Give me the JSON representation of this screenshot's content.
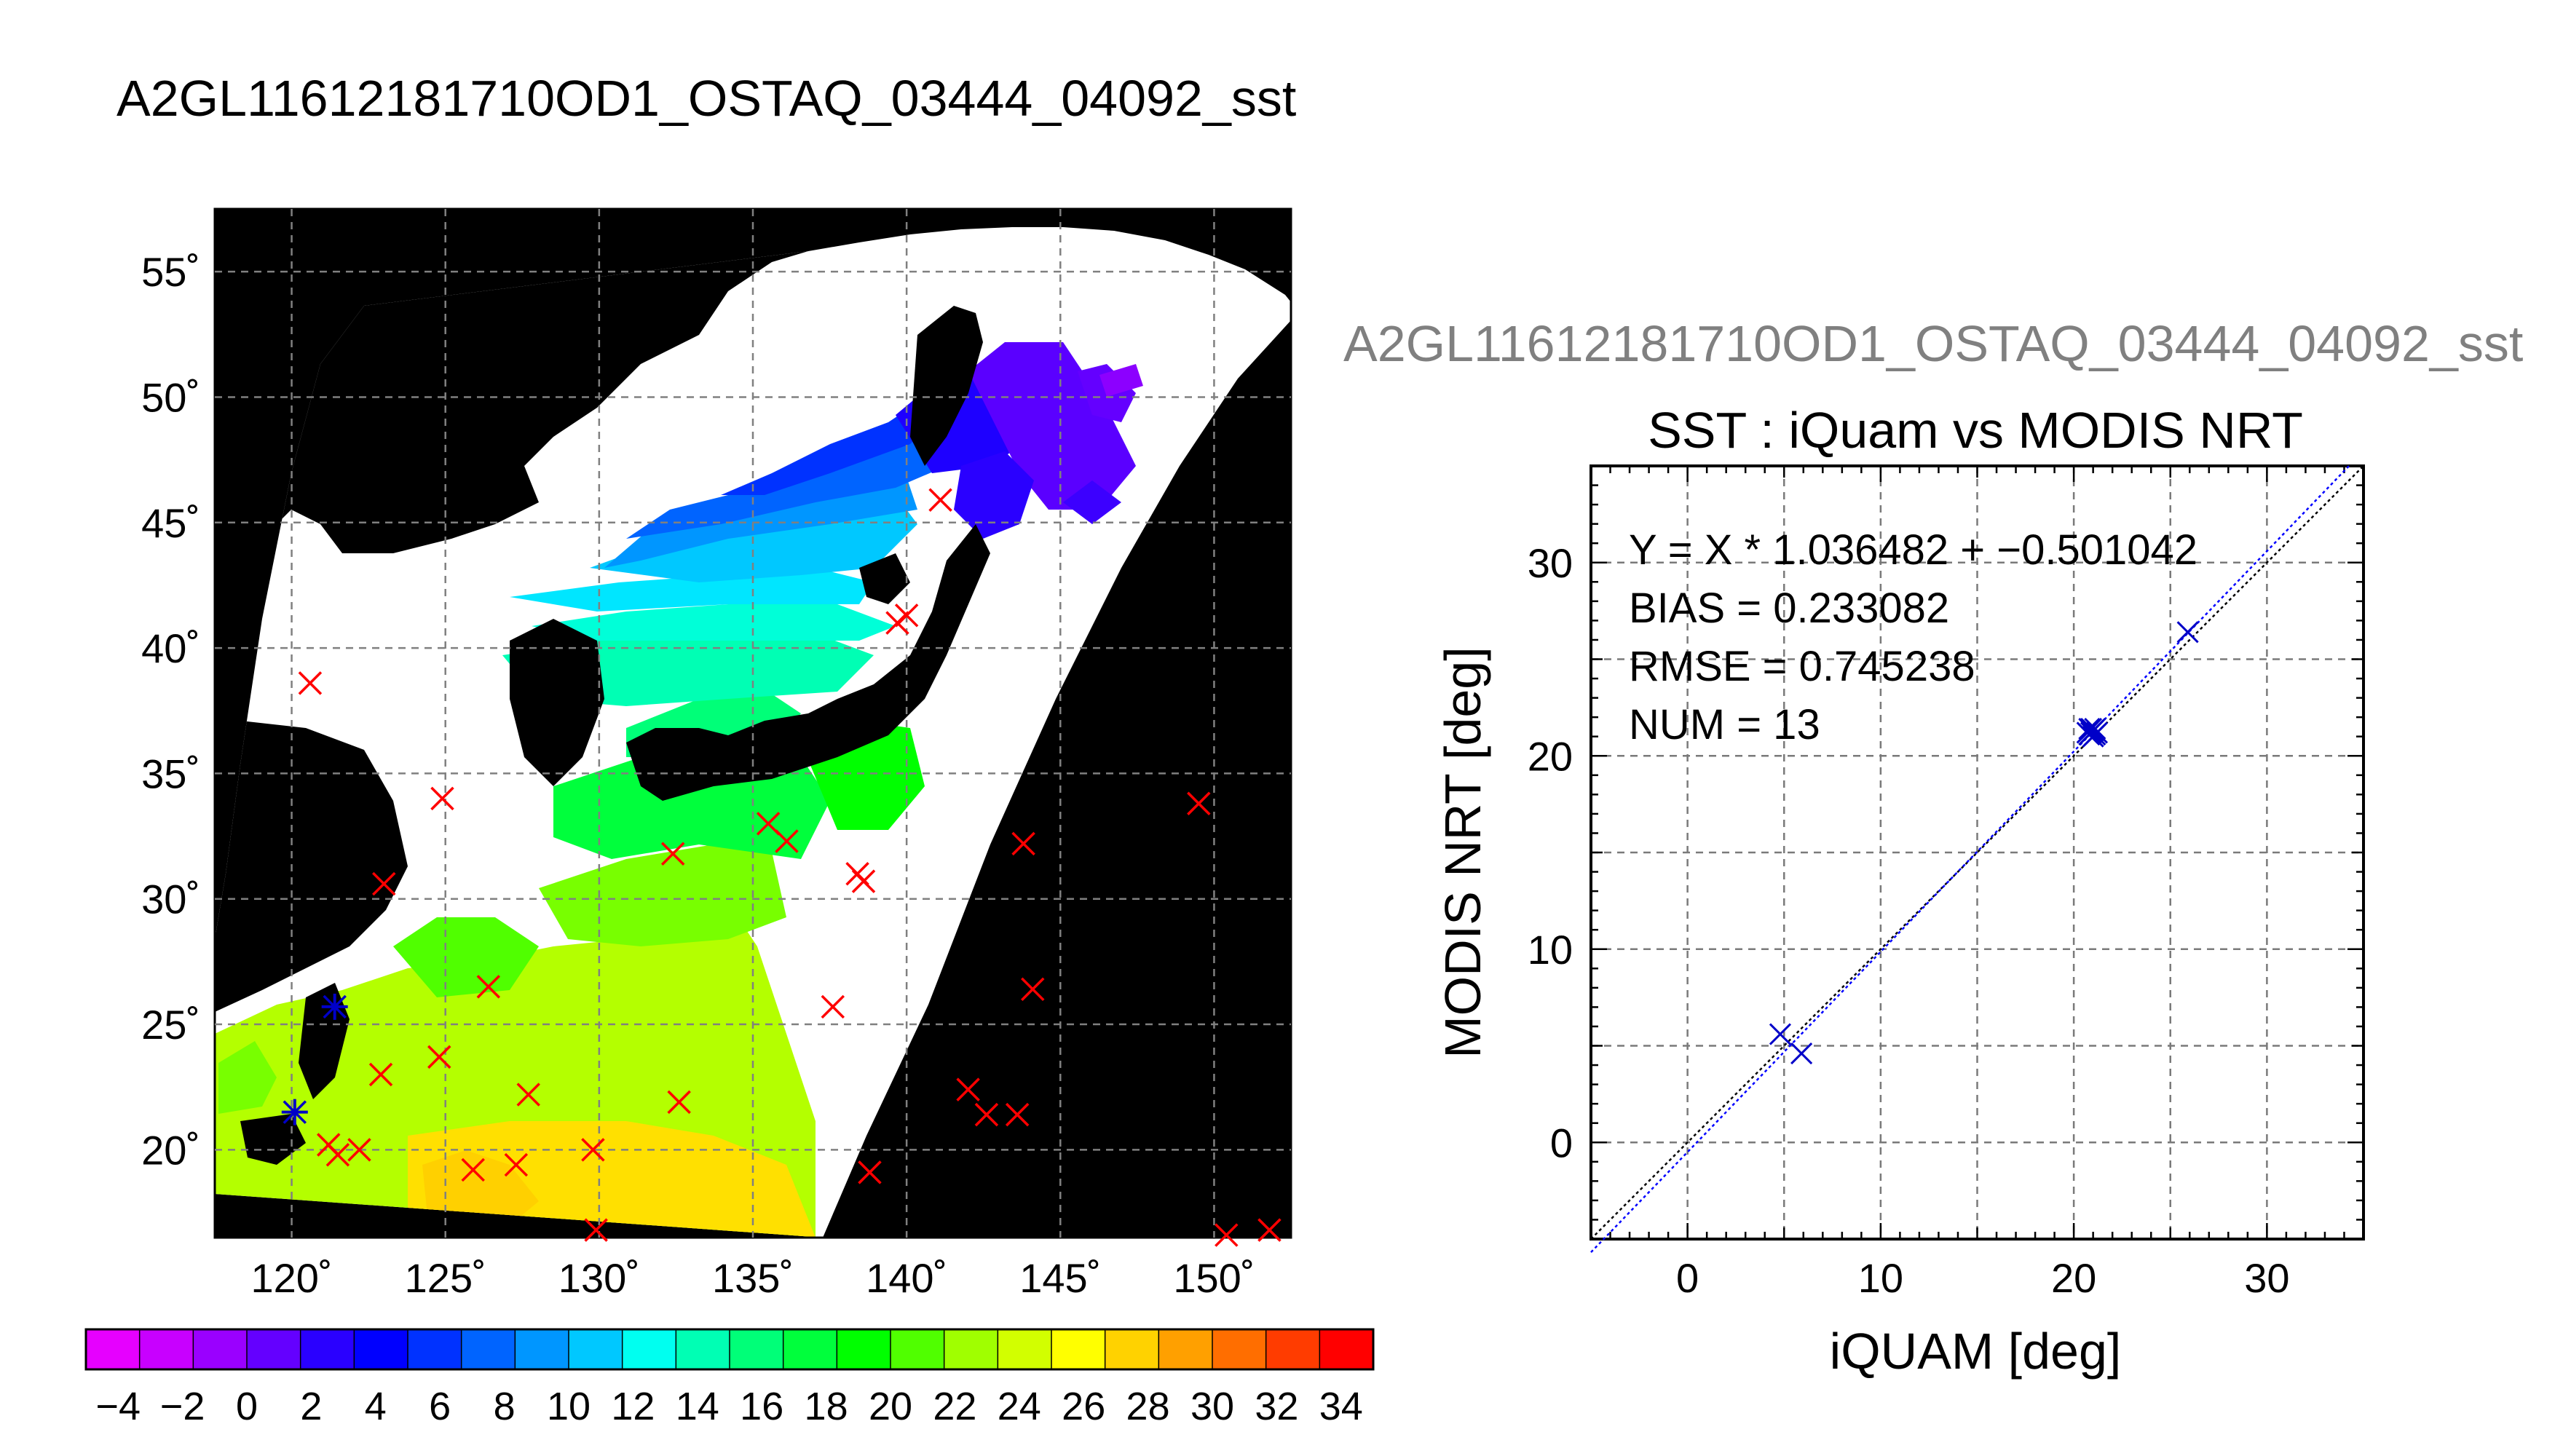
{
  "title": "A2GL11612181710OD1_OSTAQ_03444_04092_sst",
  "scatter_overtitle": "A2GL11612181710OD1_OSTAQ_03444_04092_sst",
  "colors": {
    "land": "#000000",
    "no_data": "#ffffff",
    "marker_red": "#ff0000",
    "marker_blue": "#0000c8",
    "grid": "#808080"
  },
  "chart_data": [
    {
      "type": "heatmap",
      "description_kind": "sst map",
      "x_ticks": [
        "120˚",
        "125˚",
        "130˚",
        "135˚",
        "140˚",
        "145˚",
        "150˚"
      ],
      "x_tick_values": [
        120,
        125,
        130,
        135,
        140,
        145,
        150
      ],
      "y_ticks": [
        "55˚",
        "50˚",
        "45˚",
        "40˚",
        "35˚",
        "30˚",
        "25˚",
        "20˚"
      ],
      "y_tick_values": [
        55,
        50,
        45,
        40,
        35,
        30,
        25,
        20
      ],
      "xlim": [
        117.5,
        152.5
      ],
      "ylim": [
        16.5,
        57.5
      ],
      "grid": true,
      "colorbar": {
        "min": -5,
        "max": 35,
        "tick_labels": [
          "−4",
          "−2",
          "0",
          "2",
          "4",
          "6",
          "8",
          "10",
          "12",
          "14",
          "16",
          "18",
          "20",
          "22",
          "24",
          "26",
          "28",
          "30",
          "32",
          "34"
        ],
        "tick_values": [
          -4,
          -2,
          0,
          2,
          4,
          6,
          8,
          10,
          12,
          14,
          16,
          18,
          20,
          22,
          24,
          26,
          28,
          30,
          32,
          34
        ],
        "colors": [
          "#e600ff",
          "#c800ff",
          "#9a00ff",
          "#6400ff",
          "#2a00ff",
          "#0000ff",
          "#0032ff",
          "#0064ff",
          "#0096ff",
          "#00c8ff",
          "#00fff0",
          "#00ffb4",
          "#00ff78",
          "#00ff3c",
          "#00ff00",
          "#50ff00",
          "#a0ff00",
          "#d2ff00",
          "#ffff00",
          "#ffd200",
          "#ffa000",
          "#ff6e00",
          "#ff3c00",
          "#ff0000"
        ]
      },
      "matchups": [
        {
          "lon": 120.1,
          "lat": 21.5,
          "color": "blue"
        },
        {
          "lon": 121.4,
          "lat": 25.7,
          "color": "blue"
        },
        {
          "lon": 120.6,
          "lat": 38.6,
          "color": "red"
        },
        {
          "lon": 123.0,
          "lat": 30.6,
          "color": "red"
        },
        {
          "lon": 124.9,
          "lat": 34.0,
          "color": "red"
        },
        {
          "lon": 122.9,
          "lat": 23.0,
          "color": "red"
        },
        {
          "lon": 124.8,
          "lat": 23.7,
          "color": "red"
        },
        {
          "lon": 126.4,
          "lat": 26.5,
          "color": "red"
        },
        {
          "lon": 127.7,
          "lat": 22.2,
          "color": "red"
        },
        {
          "lon": 121.2,
          "lat": 20.2,
          "color": "red"
        },
        {
          "lon": 121.5,
          "lat": 19.8,
          "color": "red"
        },
        {
          "lon": 122.2,
          "lat": 20.0,
          "color": "red"
        },
        {
          "lon": 125.9,
          "lat": 19.2,
          "color": "red"
        },
        {
          "lon": 127.3,
          "lat": 19.4,
          "color": "red"
        },
        {
          "lon": 129.8,
          "lat": 20.0,
          "color": "red"
        },
        {
          "lon": 129.9,
          "lat": 16.8,
          "color": "red"
        },
        {
          "lon": 132.4,
          "lat": 31.8,
          "color": "red"
        },
        {
          "lon": 132.6,
          "lat": 21.9,
          "color": "red"
        },
        {
          "lon": 135.5,
          "lat": 33.0,
          "color": "red"
        },
        {
          "lon": 136.1,
          "lat": 32.3,
          "color": "red"
        },
        {
          "lon": 138.4,
          "lat": 31.0,
          "color": "red"
        },
        {
          "lon": 138.6,
          "lat": 30.7,
          "color": "red"
        },
        {
          "lon": 137.6,
          "lat": 25.7,
          "color": "red"
        },
        {
          "lon": 138.8,
          "lat": 19.1,
          "color": "red"
        },
        {
          "lon": 139.7,
          "lat": 41.0,
          "color": "red"
        },
        {
          "lon": 140.0,
          "lat": 41.3,
          "color": "red"
        },
        {
          "lon": 141.1,
          "lat": 45.9,
          "color": "red"
        },
        {
          "lon": 142.0,
          "lat": 22.4,
          "color": "red"
        },
        {
          "lon": 142.6,
          "lat": 21.4,
          "color": "red"
        },
        {
          "lon": 143.6,
          "lat": 21.4,
          "color": "red"
        },
        {
          "lon": 143.8,
          "lat": 32.2,
          "color": "red"
        },
        {
          "lon": 144.1,
          "lat": 26.4,
          "color": "red"
        },
        {
          "lon": 149.5,
          "lat": 33.8,
          "color": "red"
        },
        {
          "lon": 150.4,
          "lat": 16.6,
          "color": "red"
        },
        {
          "lon": 151.8,
          "lat": 16.8,
          "color": "red"
        }
      ]
    },
    {
      "type": "scatter",
      "title": "SST : iQuam vs MODIS NRT",
      "xlabel": "iQUAM [deg]",
      "ylabel": "MODIS NRT [deg]",
      "xlim": [
        -5,
        35
      ],
      "ylim": [
        -5,
        35
      ],
      "x_ticks": [
        0,
        10,
        20,
        30
      ],
      "y_ticks": [
        0,
        10,
        20,
        30
      ],
      "grid": true,
      "annotations": [
        "Y = X * 1.036482 + −0.501042",
        "BIAS = 0.233082",
        "RMSE = 0.745238",
        "NUM = 13"
      ],
      "fit": {
        "slope": 1.036482,
        "intercept": -0.501042
      },
      "points": [
        {
          "x": 4.8,
          "y": 5.6
        },
        {
          "x": 5.9,
          "y": 4.6
        },
        {
          "x": 20.8,
          "y": 21.4
        },
        {
          "x": 20.9,
          "y": 21.2
        },
        {
          "x": 21.0,
          "y": 21.3
        },
        {
          "x": 21.1,
          "y": 21.1
        },
        {
          "x": 20.7,
          "y": 21.2
        },
        {
          "x": 21.0,
          "y": 21.0
        },
        {
          "x": 20.9,
          "y": 21.4
        },
        {
          "x": 21.2,
          "y": 21.2
        },
        {
          "x": 20.8,
          "y": 21.1
        },
        {
          "x": 21.1,
          "y": 21.4
        },
        {
          "x": 25.9,
          "y": 26.4
        }
      ]
    }
  ]
}
